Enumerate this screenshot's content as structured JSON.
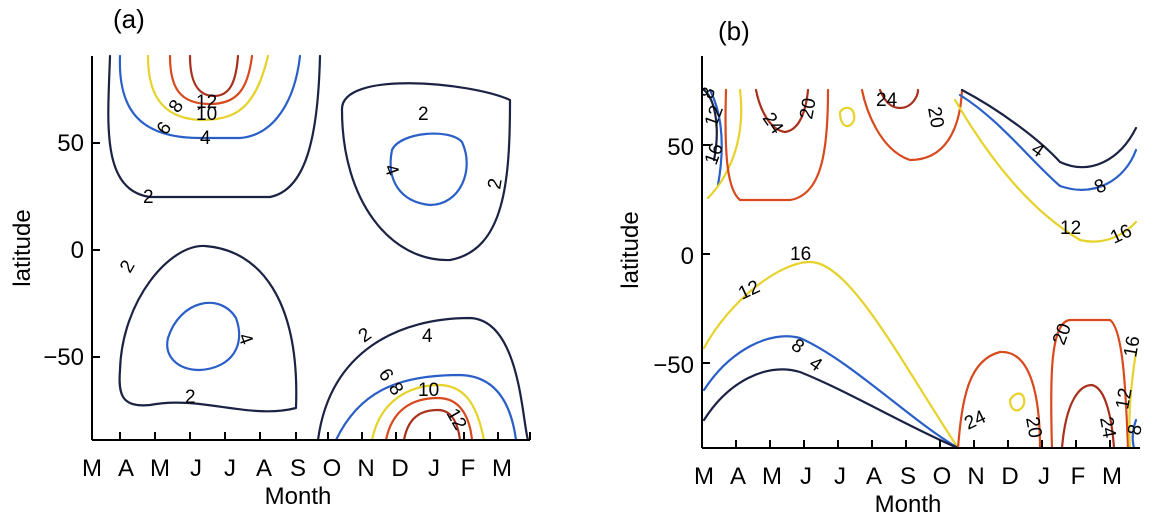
{
  "chart_data": [
    {
      "type": "contour",
      "panel_label": "(a)",
      "xlabel": "Month",
      "ylabel": "latitude",
      "x_categories": [
        "M",
        "A",
        "M",
        "J",
        "J",
        "A",
        "S",
        "O",
        "N",
        "D",
        "J",
        "F",
        "M"
      ],
      "y_ticks": [
        "50",
        "0",
        "−50"
      ],
      "ylim": [
        -90,
        90
      ],
      "contour_labels": [
        "12",
        "10",
        "8",
        "6",
        "4",
        "2",
        "2",
        "4",
        "2",
        "2",
        "4",
        "2",
        "2",
        "4",
        "6",
        "8",
        "10",
        "12"
      ],
      "colors": {
        "2": "#1c2244",
        "4": "#2a5fc8",
        "6-10": "#e6d22a",
        "12": "#d84a1e"
      }
    },
    {
      "type": "contour",
      "panel_label": "(b)",
      "xlabel": "Month",
      "ylabel": "latitude",
      "x_categories": [
        "M",
        "A",
        "M",
        "J",
        "J",
        "A",
        "S",
        "O",
        "N",
        "D",
        "J",
        "F",
        "M"
      ],
      "y_ticks": [
        "50",
        "0",
        "−50"
      ],
      "ylim": [
        -90,
        90
      ],
      "contour_labels": [
        "8",
        "12",
        "16",
        "24",
        "20",
        "24",
        "20",
        "4",
        "8",
        "12",
        "16",
        "16",
        "12",
        "8",
        "4",
        "20",
        "24",
        "20",
        "24",
        "16",
        "12",
        "8"
      ],
      "colors": {
        "4": "#1c2244",
        "8": "#2a5fc8",
        "12-16": "#e6d22a",
        "20-24": "#d84a1e"
      }
    }
  ]
}
